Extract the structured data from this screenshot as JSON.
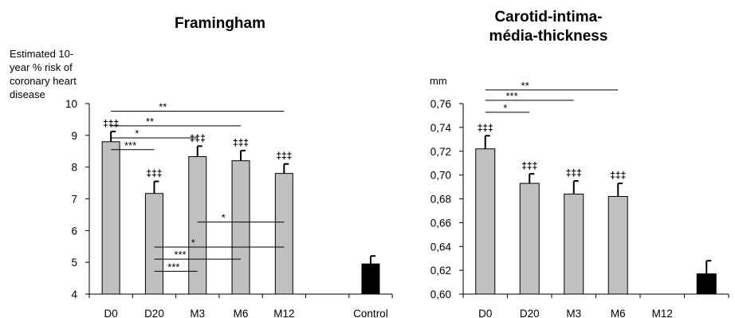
{
  "chart_data": [
    {
      "type": "bar",
      "title": "Framingham",
      "ylabel": "Estimated 10-year % risk of coronary heart disease",
      "ylabel_lines": [
        "Estimated 10-",
        "year % risk of",
        "coronary heart",
        "disease"
      ],
      "categories": [
        "D0",
        "D20",
        "M3",
        "M6",
        "M12",
        "",
        "Control"
      ],
      "values": [
        8.8,
        7.17,
        8.33,
        8.2,
        7.8,
        null,
        4.95
      ],
      "errors": [
        0.32,
        0.38,
        0.33,
        0.32,
        0.3,
        null,
        0.25
      ],
      "bar_colors": [
        "#c0c0c0",
        "#c0c0c0",
        "#c0c0c0",
        "#c0c0c0",
        "#c0c0c0",
        null,
        "#000000"
      ],
      "ylim": [
        4,
        10
      ],
      "yticks": [
        "4",
        "5",
        "6",
        "7",
        "8",
        "9",
        "10"
      ],
      "ytick_values": [
        4,
        5,
        6,
        7,
        8,
        9,
        10
      ],
      "bar_marks": [
        "‡‡‡",
        "‡‡‡",
        "‡‡‡",
        "‡‡‡",
        "‡‡‡",
        "",
        ""
      ],
      "significance_top": [
        {
          "from": 0,
          "to": 4,
          "y": 9.76,
          "label": "**"
        },
        {
          "from": 0,
          "to": 3,
          "y": 9.3,
          "label": "**"
        },
        {
          "from": 0,
          "to": 2,
          "y": 8.92,
          "label": "*"
        },
        {
          "from": 0,
          "to": 1,
          "y": 8.55,
          "label": "***"
        }
      ],
      "significance_bottom": [
        {
          "from": 2,
          "to": 4,
          "y": 6.27,
          "label": "*"
        },
        {
          "from": 1,
          "to": 4,
          "y": 5.48,
          "label": "*"
        },
        {
          "from": 1,
          "to": 3,
          "y": 5.1,
          "label": "***"
        },
        {
          "from": 1,
          "to": 2,
          "y": 4.72,
          "label": "***"
        }
      ]
    },
    {
      "type": "bar",
      "title": "Carotid-intima-média-thickness",
      "title_lines": [
        "Carotid-intima-",
        "média-thickness"
      ],
      "ylabel": "mm",
      "categories": [
        "D0",
        "D20",
        "M3",
        "M6",
        "M12",
        ""
      ],
      "values": [
        0.722,
        0.693,
        0.684,
        0.682,
        null,
        0.617
      ],
      "errors": [
        0.011,
        0.008,
        0.011,
        0.011,
        null,
        0.011
      ],
      "bar_colors": [
        "#c0c0c0",
        "#c0c0c0",
        "#c0c0c0",
        "#c0c0c0",
        null,
        "#000000"
      ],
      "ylim": [
        0.6,
        0.76
      ],
      "yticks": [
        "0,60",
        "0,62",
        "0,64",
        "0,66",
        "0,68",
        "0,70",
        "0,72",
        "0,74",
        "0,76"
      ],
      "ytick_values": [
        0.6,
        0.62,
        0.64,
        0.66,
        0.68,
        0.7,
        0.72,
        0.74,
        0.76
      ],
      "bar_marks": [
        "‡‡‡",
        "‡‡‡",
        "‡‡‡",
        "‡‡‡",
        "",
        ""
      ],
      "significance_top": [
        {
          "from": 0,
          "to": 3,
          "y": 0.7715,
          "label": "**"
        },
        {
          "from": 0,
          "to": 2,
          "y": 0.7628,
          "label": "***"
        },
        {
          "from": 0,
          "to": 1,
          "y": 0.7527,
          "label": "*"
        }
      ],
      "significance_bottom": []
    }
  ]
}
